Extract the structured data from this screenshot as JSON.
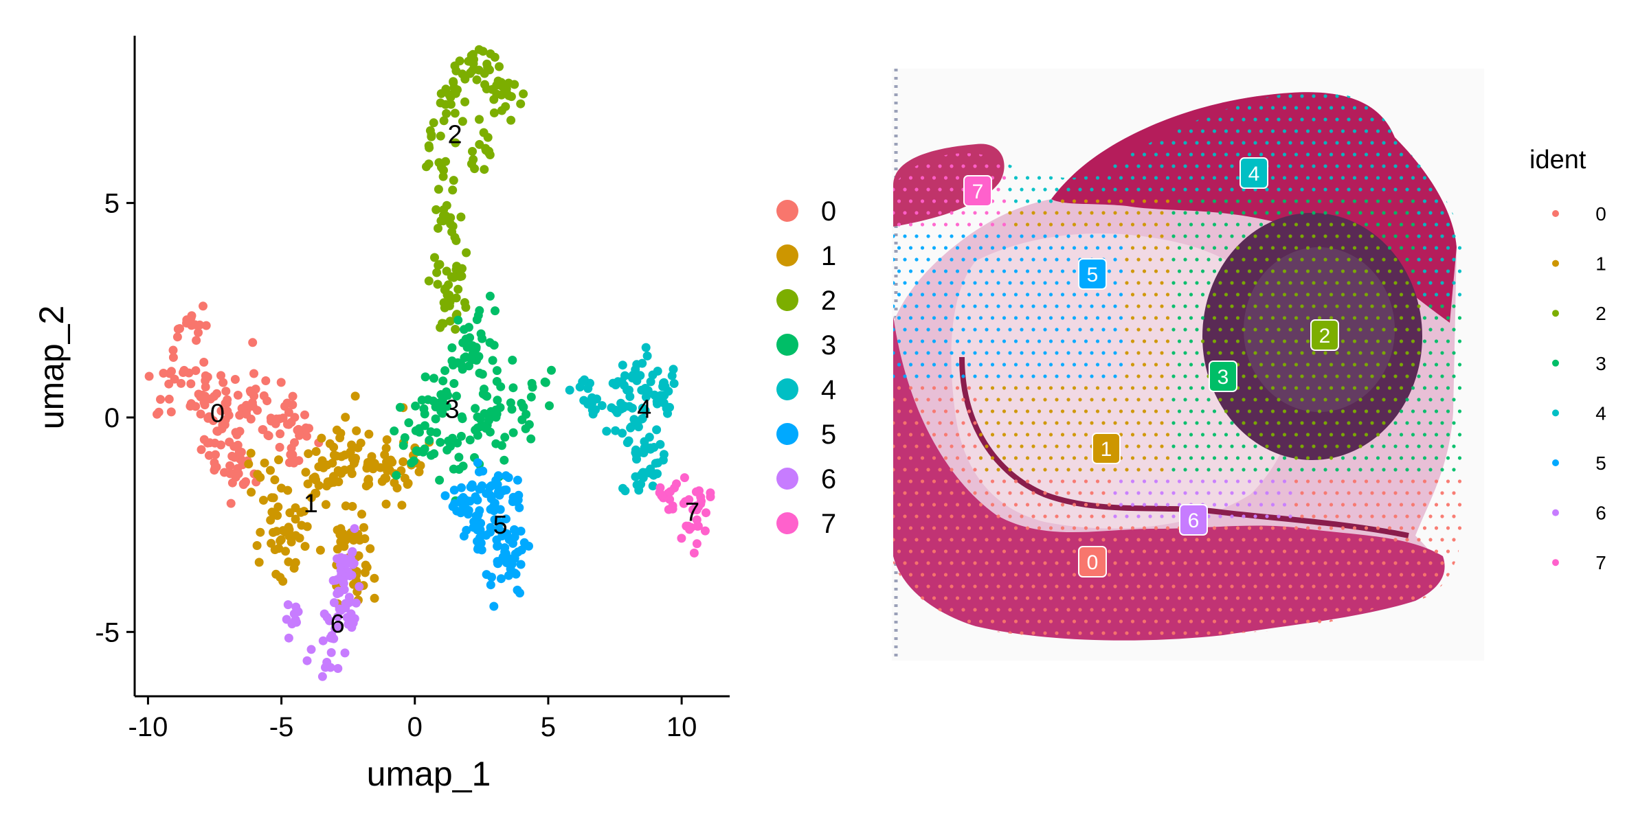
{
  "colors": [
    "#F8766D",
    "#CD9600",
    "#7CAE00",
    "#00BE67",
    "#00BFC4",
    "#00A9FF",
    "#C77CFF",
    "#FF61CC"
  ],
  "chart_data": [
    {
      "type": "scatter",
      "xlabel": "umap_1",
      "ylabel": "umap_2",
      "xlim": [
        -10.5,
        11.8
      ],
      "ylim": [
        -6.5,
        8.9
      ],
      "xticks": [
        -10,
        -5,
        0,
        5,
        10
      ],
      "xtick_labels": [
        "-10",
        "-5",
        "0",
        "5",
        "10"
      ],
      "yticks": [
        -5,
        0,
        5
      ],
      "ytick_labels": [
        "-5",
        "0",
        "5"
      ],
      "grid": false,
      "legend_position": "right",
      "legend_entries": [
        "0",
        "1",
        "2",
        "3",
        "4",
        "5",
        "6",
        "7"
      ],
      "cluster_labels": [
        {
          "label": "0",
          "x": -7.4,
          "y": 0.1
        },
        {
          "label": "1",
          "x": -3.9,
          "y": -2.0
        },
        {
          "label": "2",
          "x": 1.5,
          "y": 6.6
        },
        {
          "label": "3",
          "x": 1.4,
          "y": 0.2
        },
        {
          "label": "4",
          "x": 8.6,
          "y": 0.2
        },
        {
          "label": "5",
          "x": 3.2,
          "y": -2.5
        },
        {
          "label": "6",
          "x": -2.9,
          "y": -4.8
        },
        {
          "label": "7",
          "x": 10.4,
          "y": -2.2
        }
      ],
      "clusters": [
        {
          "name": "0",
          "anchors": [
            [
              -9.2,
              1.0
            ],
            [
              -8.5,
              2.3
            ],
            [
              -8.0,
              0.6
            ],
            [
              -7.2,
              0.4
            ],
            [
              -6.0,
              0.3
            ],
            [
              -5.0,
              0.0
            ],
            [
              -4.5,
              -0.4
            ],
            [
              -7.2,
              -0.9
            ],
            [
              -6.5,
              -1.2
            ]
          ],
          "spread": 0.38,
          "n": 170
        },
        {
          "name": "1",
          "anchors": [
            [
              -5.5,
              -1.5
            ],
            [
              -5.1,
              -2.7
            ],
            [
              -4.5,
              -3.0
            ],
            [
              -3.8,
              -1.6
            ],
            [
              -3.0,
              -1.3
            ],
            [
              -2.4,
              -2.6
            ],
            [
              -1.6,
              -1.4
            ],
            [
              -0.9,
              -1.0
            ],
            [
              -0.1,
              -1.2
            ],
            [
              -2.7,
              -0.7
            ],
            [
              -2.1,
              -3.6
            ]
          ],
          "spread": 0.4,
          "n": 190
        },
        {
          "name": "2",
          "anchors": [
            [
              1.3,
              4.5
            ],
            [
              1.0,
              5.7
            ],
            [
              0.9,
              6.6
            ],
            [
              1.2,
              7.5
            ],
            [
              1.8,
              8.0
            ],
            [
              2.6,
              8.0
            ],
            [
              3.3,
              7.6
            ],
            [
              2.6,
              6.2
            ],
            [
              1.2,
              3.4
            ],
            [
              1.3,
              2.6
            ]
          ],
          "spread": 0.3,
          "n": 150
        },
        {
          "name": "3",
          "anchors": [
            [
              0.5,
              0.0
            ],
            [
              1.1,
              0.7
            ],
            [
              2.0,
              1.4
            ],
            [
              2.4,
              2.2
            ],
            [
              1.6,
              -0.8
            ],
            [
              3.4,
              0.4
            ],
            [
              4.5,
              0.6
            ],
            [
              0.0,
              -0.5
            ],
            [
              2.6,
              -0.2
            ]
          ],
          "spread": 0.4,
          "n": 155
        },
        {
          "name": "4",
          "anchors": [
            [
              6.5,
              0.5
            ],
            [
              7.7,
              0.3
            ],
            [
              8.4,
              0.9
            ],
            [
              9.2,
              0.6
            ],
            [
              8.3,
              -0.3
            ],
            [
              9.0,
              -0.8
            ],
            [
              8.6,
              -1.3
            ]
          ],
          "spread": 0.32,
          "n": 120
        },
        {
          "name": "5",
          "anchors": [
            [
              2.7,
              -1.6
            ],
            [
              3.4,
              -2.0
            ],
            [
              3.0,
              -2.6
            ],
            [
              3.6,
              -3.1
            ],
            [
              3.4,
              -3.5
            ],
            [
              2.2,
              -2.4
            ],
            [
              1.8,
              -2.0
            ]
          ],
          "spread": 0.32,
          "n": 130
        },
        {
          "name": "6",
          "anchors": [
            [
              -4.4,
              -4.6
            ],
            [
              -3.4,
              -5.1
            ],
            [
              -2.9,
              -5.7
            ],
            [
              -2.4,
              -4.6
            ],
            [
              -2.8,
              -3.8
            ],
            [
              -2.6,
              -3.5
            ]
          ],
          "spread": 0.28,
          "n": 75
        },
        {
          "name": "7",
          "anchors": [
            [
              9.3,
              -1.8
            ],
            [
              10.2,
              -2.0
            ],
            [
              10.5,
              -2.6
            ],
            [
              10.8,
              -2.1
            ],
            [
              10.1,
              -2.7
            ]
          ],
          "spread": 0.22,
          "n": 40
        }
      ]
    },
    {
      "type": "spatial",
      "legend_title": "ident",
      "legend_entries": [
        "0",
        "1",
        "2",
        "3",
        "4",
        "5",
        "6",
        "7"
      ],
      "region_labels": [
        "0",
        "1",
        "2",
        "3",
        "4",
        "5",
        "6",
        "7"
      ]
    }
  ]
}
